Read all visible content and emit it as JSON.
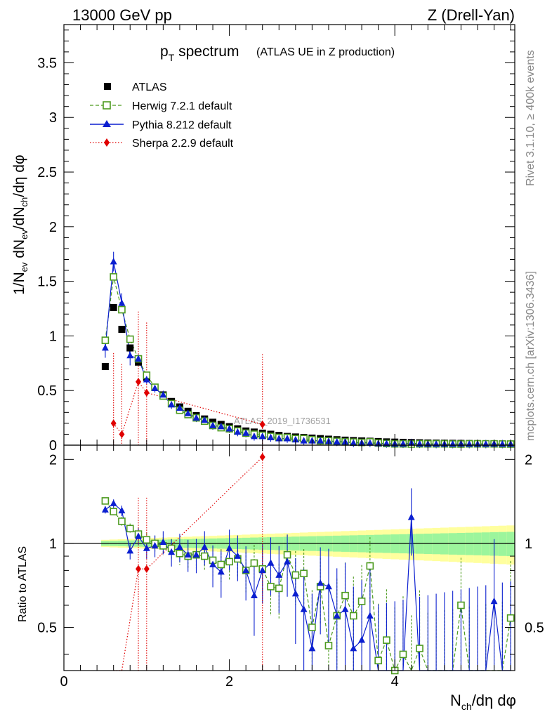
{
  "chart_data": {
    "type": "scatter",
    "header_left": "13000 GeV pp",
    "header_right": "Z (Drell-Yan)",
    "title_main": "p",
    "title_sub": "T",
    "title_rest": " spectrum",
    "title_small": "(ATLAS UE in Z production)",
    "ylabel_parts": [
      "1/N",
      "ev",
      " dN",
      "ev",
      "/dN",
      "ch",
      "/dη dφ"
    ],
    "xlabel_parts": [
      "N",
      "ch",
      "/dη dφ"
    ],
    "ratio_ylabel": "Ratio to ATLAS",
    "watermark": "ATLAS_2019_I1736531",
    "side_text_top": "Rivet 3.1.10, ≥ 400k events",
    "side_text_bottom": "mcplots.cern.ch [arXiv:1306.3436]",
    "xlim": [
      0,
      5.45
    ],
    "ylim": [
      0,
      3.85
    ],
    "ratio_ylim": [
      0.35,
      2.25
    ],
    "x_ticks": [
      "0",
      "2",
      "4"
    ],
    "y_ticks": [
      "0",
      "0.5",
      "1",
      "1.5",
      "2",
      "2.5",
      "3",
      "3.5"
    ],
    "ratio_ticks": [
      "0.5",
      "1",
      "2"
    ],
    "legend": [
      {
        "name": "ATLAS",
        "color": "#000000",
        "marker": "square"
      },
      {
        "name": "Herwig 7.2.1 default",
        "color": "#4c9a1f",
        "marker": "open-square"
      },
      {
        "name": "Pythia 8.212 default",
        "color": "#0b1fd0",
        "marker": "triangle"
      },
      {
        "name": "Sherpa 2.2.9 default",
        "color": "#e00000",
        "marker": "diamond"
      }
    ],
    "atlas": {
      "x": [
        0.5,
        0.6,
        0.7,
        0.8,
        0.9,
        1.0,
        1.1,
        1.2,
        1.3,
        1.4,
        1.5,
        1.6,
        1.7,
        1.8,
        1.9,
        2.0,
        2.1,
        2.2,
        2.3,
        2.4,
        2.5,
        2.6,
        2.7,
        2.8,
        2.9,
        3.0,
        3.1,
        3.2,
        3.3,
        3.4,
        3.5,
        3.6,
        3.7,
        3.8,
        3.9,
        4.0,
        4.1,
        4.2,
        4.3,
        4.4,
        4.5,
        4.6,
        4.7,
        4.8,
        4.9,
        5.0,
        5.1,
        5.2,
        5.3,
        5.4
      ],
      "y": [
        0.72,
        1.26,
        1.06,
        0.89,
        0.76,
        0.62,
        0.53,
        0.46,
        0.4,
        0.35,
        0.31,
        0.27,
        0.24,
        0.21,
        0.19,
        0.17,
        0.15,
        0.13,
        0.12,
        0.11,
        0.1,
        0.09,
        0.08,
        0.075,
        0.07,
        0.065,
        0.06,
        0.055,
        0.05,
        0.046,
        0.042,
        0.039,
        0.036,
        0.033,
        0.03,
        0.028,
        0.026,
        0.024,
        0.022,
        0.02,
        0.019,
        0.018,
        0.017,
        0.016,
        0.015,
        0.014,
        0.013,
        0.012,
        0.011,
        0.01
      ]
    },
    "herwig": {
      "x": [
        0.5,
        0.6,
        0.7,
        0.8,
        0.9,
        1.0,
        1.1,
        1.2,
        1.3,
        1.4,
        1.5,
        1.6,
        1.7,
        1.8,
        1.9,
        2.0,
        2.1,
        2.2,
        2.3,
        2.4,
        2.5,
        2.6,
        2.7,
        2.8,
        2.9,
        3.0,
        3.1,
        3.2,
        3.3,
        3.4,
        3.5,
        3.6,
        3.7,
        3.8,
        3.9,
        4.0,
        4.1,
        4.2,
        4.3,
        4.4,
        4.5,
        4.6,
        4.7,
        4.8,
        4.9,
        5.0,
        5.1,
        5.2,
        5.3,
        5.4
      ],
      "y": [
        0.96,
        1.54,
        1.24,
        0.97,
        0.79,
        0.64,
        0.53,
        0.45,
        0.38,
        0.32,
        0.28,
        0.25,
        0.22,
        0.18,
        0.16,
        0.15,
        0.13,
        0.11,
        0.1,
        0.09,
        0.08,
        0.07,
        0.07,
        0.06,
        0.06,
        0.05,
        0.04,
        0.04,
        0.035,
        0.03,
        0.028,
        0.025,
        0.03,
        0.02,
        0.015,
        0.012,
        0.012,
        0.01,
        0.012,
        0.012,
        0.012,
        0.012,
        0.01,
        0.01,
        0.012,
        0.012,
        0.012,
        0.012,
        0.01,
        0.01
      ]
    },
    "pythia": {
      "x": [
        0.5,
        0.6,
        0.7,
        0.8,
        0.9,
        1.0,
        1.1,
        1.2,
        1.3,
        1.4,
        1.5,
        1.6,
        1.7,
        1.8,
        1.9,
        2.0,
        2.1,
        2.2,
        2.3,
        2.4,
        2.5,
        2.6,
        2.7,
        2.8,
        2.9,
        3.0,
        3.1,
        3.2,
        3.3,
        3.4,
        3.5,
        3.6,
        3.7,
        3.8,
        3.9,
        4.0,
        4.1,
        4.2,
        4.3,
        4.4,
        4.5,
        4.6,
        4.7,
        4.8,
        4.9,
        5.0,
        5.1,
        5.2,
        5.3,
        5.4
      ],
      "y": [
        0.89,
        1.68,
        1.3,
        0.82,
        0.79,
        0.6,
        0.52,
        0.46,
        0.37,
        0.34,
        0.29,
        0.25,
        0.23,
        0.18,
        0.17,
        0.15,
        0.12,
        0.11,
        0.08,
        0.08,
        0.07,
        0.06,
        0.06,
        0.05,
        0.04,
        0.04,
        0.04,
        0.035,
        0.03,
        0.03,
        0.02,
        0.02,
        0.02,
        0.015,
        0.015,
        0.012,
        0.012,
        0.02,
        0.012,
        0.01,
        0.01,
        0.01,
        0.01,
        0.012,
        0.01,
        0.01,
        0.01,
        0.012,
        0.01,
        0.01
      ]
    },
    "sherpa": {
      "x": [
        0.6,
        0.7,
        0.9,
        1.0,
        2.4
      ],
      "y": [
        0.2,
        0.1,
        0.58,
        0.48,
        0.19
      ]
    },
    "ratio": {
      "herwig": {
        "x": [
          0.5,
          0.6,
          0.7,
          0.8,
          0.9,
          1.0,
          1.1,
          1.2,
          1.3,
          1.4,
          1.5,
          1.6,
          1.7,
          1.8,
          1.9,
          2.0,
          2.1,
          2.2,
          2.3,
          2.4,
          2.5,
          2.6,
          2.7,
          2.8,
          2.9,
          3.0,
          3.1,
          3.2,
          3.3,
          3.4,
          3.5,
          3.6,
          3.7,
          3.8,
          3.9,
          4.0,
          4.1,
          4.2,
          4.3,
          4.4,
          4.5,
          4.6,
          4.7,
          4.8,
          4.9,
          5.0,
          5.1,
          5.2,
          5.3,
          5.4
        ],
        "y": [
          1.42,
          1.3,
          1.2,
          1.13,
          1.08,
          1.03,
          1.0,
          0.98,
          0.96,
          0.92,
          0.9,
          0.91,
          0.9,
          0.87,
          0.84,
          0.86,
          0.88,
          0.8,
          0.85,
          0.81,
          0.7,
          0.69,
          0.91,
          0.77,
          0.78,
          0.5,
          0.7,
          0.43,
          0.55,
          0.65,
          0.55,
          0.62,
          0.83,
          0.38,
          0.45,
          0.35,
          0.4,
          0.3,
          0.42,
          0.3,
          0.3,
          0.3,
          0.3,
          0.6,
          0.3,
          0.3,
          0.3,
          0.3,
          0.3,
          0.54
        ]
      },
      "pythia": {
        "x": [
          0.5,
          0.6,
          0.7,
          0.8,
          0.9,
          1.0,
          1.1,
          1.2,
          1.3,
          1.4,
          1.5,
          1.6,
          1.7,
          1.8,
          1.9,
          2.0,
          2.1,
          2.2,
          2.3,
          2.4,
          2.5,
          2.6,
          2.7,
          2.8,
          2.9,
          3.0,
          3.1,
          3.2,
          3.3,
          3.4,
          3.5,
          3.6,
          3.7,
          3.8,
          3.9,
          4.0,
          4.1,
          4.2,
          4.3,
          4.4,
          4.5,
          4.6,
          4.7,
          4.8,
          4.9,
          5.0,
          5.1,
          5.2,
          5.3,
          5.4
        ],
        "y": [
          1.32,
          1.39,
          1.31,
          0.94,
          1.06,
          0.96,
          0.98,
          1.01,
          0.93,
          0.97,
          0.91,
          0.91,
          0.97,
          0.84,
          0.79,
          0.96,
          0.9,
          0.8,
          0.65,
          0.8,
          0.85,
          0.77,
          0.86,
          0.66,
          0.58,
          0.42,
          0.72,
          0.7,
          0.55,
          0.58,
          0.42,
          0.45,
          0.55,
          0.3,
          0.3,
          0.3,
          0.3,
          1.24,
          0.3,
          0.3,
          0.3,
          0.3,
          0.3,
          0.3,
          0.3,
          0.3,
          0.3,
          0.62,
          0.3,
          0.3
        ]
      },
      "sherpa": {
        "x": [
          0.6,
          0.7,
          0.9,
          1.0,
          2.4
        ],
        "y": [
          0.16,
          0.1,
          0.81,
          0.81,
          2.04
        ]
      }
    }
  }
}
